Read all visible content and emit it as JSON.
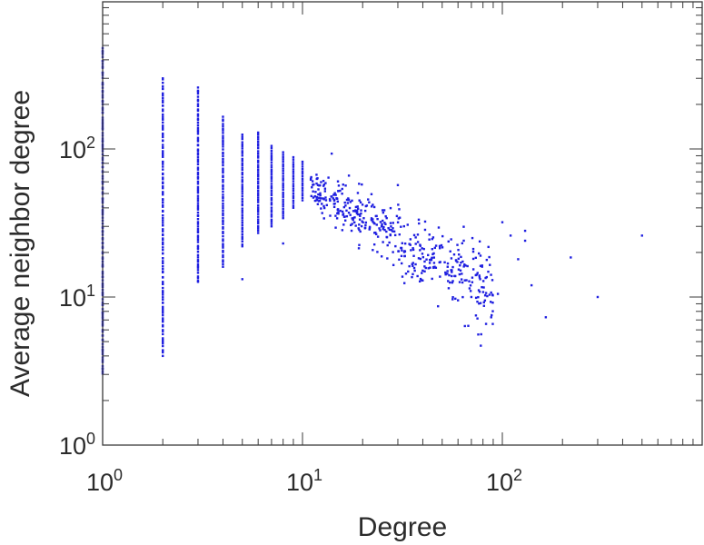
{
  "chart_data": {
    "type": "scatter",
    "title": "",
    "xlabel": "Degree",
    "ylabel": "Average neighbor degree",
    "x_scale": "log",
    "y_scale": "log",
    "xlim": [
      1,
      1000
    ],
    "ylim": [
      1,
      1000
    ],
    "grid": false,
    "legend": "none",
    "marker_color": "#1f1fe0",
    "x_ticks": [
      {
        "base": "10",
        "exp": "0",
        "value": 1
      },
      {
        "base": "10",
        "exp": "1",
        "value": 10
      },
      {
        "base": "10",
        "exp": "2",
        "value": 100
      }
    ],
    "y_ticks": [
      {
        "base": "10",
        "exp": "0",
        "value": 1
      },
      {
        "base": "10",
        "exp": "1",
        "value": 10
      },
      {
        "base": "10",
        "exp": "2",
        "value": 100
      }
    ],
    "columns": [
      {
        "x": 1,
        "ymin": 3,
        "ymax": 480
      },
      {
        "x": 2,
        "ymin": 4,
        "ymax": 300
      },
      {
        "x": 3,
        "ymin": 12.5,
        "ymax": 260
      },
      {
        "x": 4,
        "ymin": 16,
        "ymax": 165
      },
      {
        "x": 5,
        "ymin": 22,
        "ymax": 125
      },
      {
        "x": 6,
        "ymin": 27,
        "ymax": 130
      },
      {
        "x": 7,
        "ymin": 30,
        "ymax": 105
      },
      {
        "x": 8,
        "ymin": 34,
        "ymax": 95
      },
      {
        "x": 9,
        "ymin": 40,
        "ymax": 88
      },
      {
        "x": 10,
        "ymin": 45,
        "ymax": 82
      }
    ],
    "extra_points": [
      {
        "x": 5,
        "y": 13.2
      },
      {
        "x": 8,
        "y": 23
      },
      {
        "x": 14,
        "y": 93
      },
      {
        "x": 30,
        "y": 57
      },
      {
        "x": 60,
        "y": 9.5
      },
      {
        "x": 70,
        "y": 10
      },
      {
        "x": 75,
        "y": 9.3
      },
      {
        "x": 95,
        "y": 10.5
      },
      {
        "x": 100,
        "y": 32
      },
      {
        "x": 110,
        "y": 26
      },
      {
        "x": 120,
        "y": 18
      },
      {
        "x": 130,
        "y": 24
      },
      {
        "x": 130,
        "y": 28
      },
      {
        "x": 140,
        "y": 12
      },
      {
        "x": 165,
        "y": 7.3
      },
      {
        "x": 220,
        "y": 18.5
      },
      {
        "x": 300,
        "y": 10
      },
      {
        "x": 500,
        "y": 26
      }
    ],
    "cloud": {
      "x_range": [
        11,
        90
      ],
      "trend_intercept_y": 60,
      "trend_slope": -0.8,
      "scatter_log10": 0.14,
      "count": 460
    }
  }
}
